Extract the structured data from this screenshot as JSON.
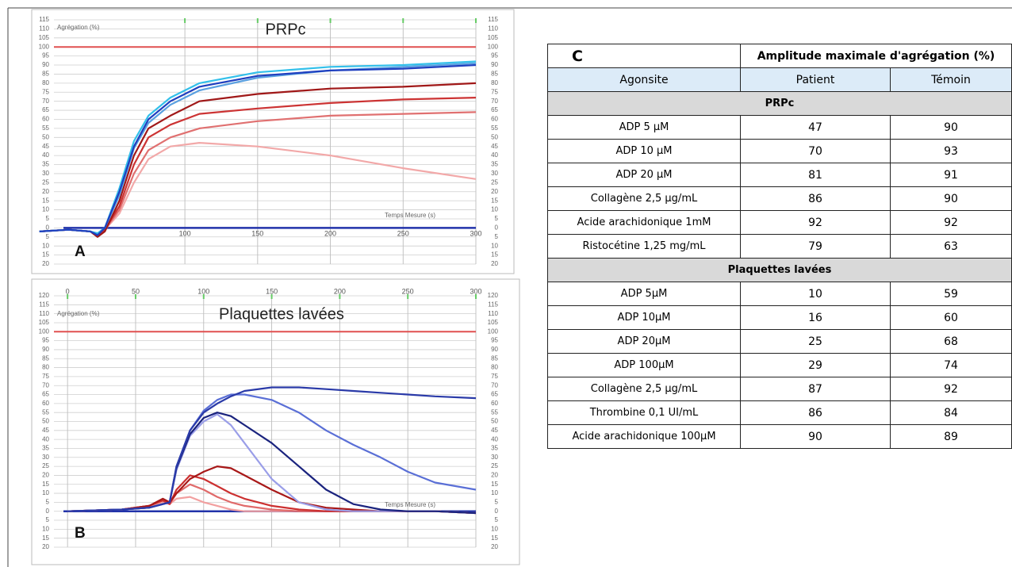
{
  "chart_data": [
    {
      "type": "line",
      "panel": "A",
      "title": "PRPc",
      "ylabel": "Agrégation (%)",
      "xlabel": "Temps Mesure (s)",
      "xlim": [
        10,
        300
      ],
      "ylim": [
        -20,
        115
      ],
      "xtick_position": "baseline",
      "grid": true,
      "xticks": [
        100,
        150,
        200,
        250,
        300
      ],
      "yticks": [
        {
          "value": -20,
          "label": "20"
        },
        {
          "value": -15,
          "label": "15"
        },
        {
          "value": -10,
          "label": "10"
        },
        {
          "value": -5,
          "label": "5"
        },
        0,
        5,
        10,
        15,
        20,
        25,
        30,
        35,
        40,
        45,
        50,
        55,
        60,
        65,
        70,
        75,
        80,
        85,
        90,
        95,
        100,
        105,
        110,
        115
      ],
      "hline": 100,
      "hline_color": "#e05050",
      "baseline": 0,
      "baseline_color": "#2233aa",
      "x": [
        0,
        20,
        35,
        40,
        45,
        55,
        65,
        75,
        90,
        110,
        150,
        200,
        250,
        300
      ],
      "series": [
        {
          "color": "#f2a8a8",
          "values": [
            -2,
            -1,
            -2,
            -4,
            -1,
            8,
            25,
            38,
            45,
            47,
            45,
            40,
            33,
            27
          ]
        },
        {
          "color": "#e07070",
          "values": [
            -2,
            -1,
            -2,
            -4,
            -1,
            10,
            30,
            43,
            50,
            55,
            59,
            62,
            63,
            64
          ]
        },
        {
          "color": "#cc3333",
          "values": [
            -2,
            -1,
            -2,
            -4,
            -1,
            12,
            35,
            50,
            57,
            63,
            66,
            69,
            71,
            72
          ]
        },
        {
          "color": "#a01818",
          "values": [
            -2,
            -1,
            -2,
            -5,
            -2,
            15,
            40,
            55,
            62,
            70,
            74,
            77,
            78,
            80
          ]
        },
        {
          "color": "#5aa0e0",
          "values": [
            -2,
            -1,
            -2,
            -3,
            0,
            18,
            44,
            58,
            68,
            76,
            83,
            87,
            89,
            91
          ]
        },
        {
          "color": "#33c0ea",
          "values": [
            -2,
            -1,
            -2,
            -3,
            0,
            22,
            48,
            62,
            72,
            80,
            86,
            89,
            90,
            92
          ]
        },
        {
          "color": "#1f3fbf",
          "values": [
            -2,
            -1,
            -2,
            -4,
            0,
            20,
            45,
            60,
            70,
            78,
            84,
            87,
            88,
            90
          ]
        }
      ]
    },
    {
      "type": "line",
      "panel": "B",
      "title": "Plaquettes lavées",
      "ylabel": "Agrégation (%)",
      "xlabel": "Temps Mesure (s)",
      "xlim": [
        -10,
        300
      ],
      "ylim": [
        -20,
        120
      ],
      "xtick_position": "top",
      "grid": true,
      "xticks": [
        0,
        50,
        100,
        150,
        200,
        250,
        300
      ],
      "yticks": [
        {
          "value": -20,
          "label": "20"
        },
        {
          "value": -15,
          "label": "15"
        },
        {
          "value": -10,
          "label": "10"
        },
        {
          "value": -5,
          "label": "5"
        },
        0,
        5,
        10,
        15,
        20,
        25,
        30,
        35,
        40,
        45,
        50,
        55,
        60,
        65,
        70,
        75,
        80,
        85,
        90,
        95,
        100,
        105,
        110,
        115,
        120
      ],
      "hline": 100,
      "hline_color": "#e05050",
      "baseline": 0,
      "baseline_color": "#2233aa",
      "x": [
        0,
        40,
        60,
        70,
        75,
        80,
        90,
        100,
        110,
        120,
        130,
        150,
        170,
        190,
        210,
        230,
        250,
        270,
        300
      ],
      "series": [
        {
          "color": "#f2a0a0",
          "values": [
            0,
            1,
            3,
            5,
            4,
            7,
            8,
            5,
            3,
            1,
            0,
            0,
            0,
            0,
            0,
            0,
            0,
            0,
            -1
          ]
        },
        {
          "color": "#e06a6a",
          "values": [
            0,
            1,
            3,
            6,
            4,
            10,
            15,
            12,
            8,
            5,
            3,
            1,
            0,
            0,
            0,
            0,
            0,
            0,
            -1
          ]
        },
        {
          "color": "#cc3030",
          "values": [
            0,
            1,
            3,
            6,
            4,
            12,
            20,
            18,
            14,
            10,
            7,
            3,
            1,
            0,
            0,
            0,
            0,
            0,
            -1
          ]
        },
        {
          "color": "#a81818",
          "values": [
            0,
            1,
            3,
            7,
            5,
            10,
            18,
            22,
            25,
            24,
            20,
            12,
            5,
            2,
            1,
            0,
            0,
            0,
            -1
          ]
        },
        {
          "color": "#9a9ee8",
          "values": [
            0,
            1,
            2,
            4,
            5,
            23,
            42,
            50,
            54,
            48,
            38,
            18,
            5,
            1,
            0,
            0,
            0,
            0,
            -1
          ]
        },
        {
          "color": "#1a237e",
          "values": [
            0,
            1,
            2,
            4,
            5,
            24,
            43,
            52,
            55,
            53,
            48,
            38,
            25,
            12,
            4,
            1,
            0,
            0,
            -1
          ]
        },
        {
          "color": "#5a6fd6",
          "values": [
            0,
            1,
            2,
            4,
            5,
            25,
            45,
            56,
            62,
            65,
            65,
            62,
            55,
            45,
            37,
            30,
            22,
            16,
            12
          ]
        },
        {
          "color": "#2a3aa8",
          "values": [
            0,
            1,
            2,
            4,
            5,
            25,
            45,
            55,
            60,
            64,
            67,
            69,
            69,
            68,
            67,
            66,
            65,
            64,
            63
          ]
        }
      ]
    }
  ],
  "table": {
    "label": "C",
    "title": "Amplitude maximale d'agrégation (%)",
    "columns": [
      "Agonsite",
      "Patient",
      "Témoin"
    ],
    "sections": [
      {
        "name": "PRPc",
        "rows": [
          [
            "ADP 5 µM",
            47,
            90
          ],
          [
            "ADP 10 µM",
            70,
            93
          ],
          [
            "ADP 20 µM",
            81,
            91
          ],
          [
            "Collagène 2,5 µg/mL",
            86,
            90
          ],
          [
            "Acide arachidonique 1mM",
            92,
            92
          ],
          [
            "Ristocétine 1,25 mg/mL",
            79,
            63
          ]
        ]
      },
      {
        "name": "Plaquettes lavées",
        "rows": [
          [
            "ADP 5µM",
            10,
            59
          ],
          [
            "ADP 10µM",
            16,
            60
          ],
          [
            "ADP 20µM",
            25,
            68
          ],
          [
            "ADP 100µM",
            29,
            74
          ],
          [
            "Collagène 2,5 µg/mL",
            87,
            92
          ],
          [
            "Thrombine 0,1 UI/mL",
            86,
            84
          ],
          [
            "Acide arachidonique 100µM",
            90,
            89
          ]
        ]
      }
    ]
  }
}
